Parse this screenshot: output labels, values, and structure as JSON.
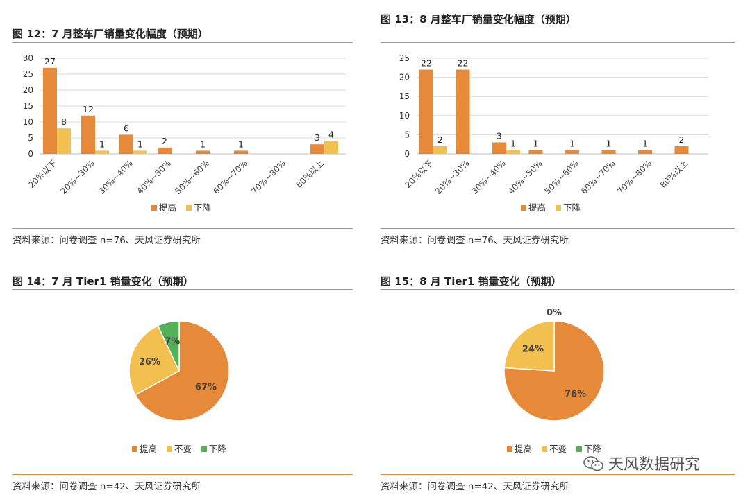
{
  "watermark": {
    "text": "天风数据研究",
    "icon": "wechat-icon"
  },
  "colors": {
    "up": "#e68a3a",
    "down": "#f2c04e",
    "same": "#f2c04e",
    "green": "#55b05a",
    "rule": "#e0883a"
  },
  "figures": [
    {
      "title": "图 12：7 月整车厂销量变化幅度（预期）",
      "source": "资料来源：问卷调查 n=76、天风证券研究所"
    },
    {
      "title": "图 13：8 月整车厂销量变化幅度（预期）",
      "source": "资料来源：问卷调查 n=76、天风证券研究所"
    },
    {
      "title": "图 14：7 月 Tier1 销量变化（预期）",
      "source": "资料来源：问卷调查 n=42、天风证券研究所"
    },
    {
      "title": "图 15：8 月 Tier1 销量变化（预期）",
      "source": "资料来源：问卷调查 n=42、天风证券研究所"
    }
  ],
  "chart_data": [
    {
      "type": "bar",
      "categories": [
        "20%以下",
        "20%~30%",
        "30%~40%",
        "40%~50%",
        "50%~60%",
        "60%~70%",
        "70%~80%",
        "80%以上"
      ],
      "series": [
        {
          "name": "提高",
          "values": [
            27,
            12,
            6,
            2,
            1,
            1,
            0,
            3
          ],
          "labels": [
            "27",
            "12",
            "6",
            "2",
            "1",
            "1",
            "",
            "3"
          ]
        },
        {
          "name": "下降",
          "values": [
            8,
            1,
            1,
            0,
            0,
            0,
            0,
            4
          ],
          "labels": [
            "8",
            "1",
            "1",
            "",
            "",
            "",
            "",
            "4"
          ]
        }
      ],
      "yticks": [
        0,
        5,
        10,
        15,
        20,
        25,
        30
      ],
      "ylim": [
        0,
        30
      ],
      "legend": "bottom",
      "grid": true
    },
    {
      "type": "bar",
      "categories": [
        "20%以下",
        "20%~30%",
        "30%~40%",
        "40%~50%",
        "50%~60%",
        "60%~70%",
        "70%~80%",
        "80%以上"
      ],
      "series": [
        {
          "name": "提高",
          "values": [
            22,
            22,
            3,
            1,
            1,
            1,
            1,
            2
          ],
          "labels": [
            "22",
            "22",
            "3",
            "1",
            "1",
            "1",
            "1",
            "2"
          ]
        },
        {
          "name": "下降",
          "values": [
            2,
            0,
            1,
            0,
            0,
            0,
            0,
            0
          ],
          "labels": [
            "2",
            "",
            "1",
            "",
            "",
            "",
            "",
            ""
          ]
        }
      ],
      "yticks": [
        0,
        5,
        10,
        15,
        20,
        25
      ],
      "ylim": [
        0,
        25
      ],
      "legend": "bottom",
      "grid": true
    },
    {
      "type": "pie",
      "slices": [
        {
          "name": "提高",
          "value": 67,
          "label": "67%"
        },
        {
          "name": "不变",
          "value": 26,
          "label": "26%"
        },
        {
          "name": "下降",
          "value": 7,
          "label": "7%"
        }
      ],
      "legend": "bottom"
    },
    {
      "type": "pie",
      "slices": [
        {
          "name": "提高",
          "value": 76,
          "label": "76%"
        },
        {
          "name": "不变",
          "value": 24,
          "label": "24%"
        },
        {
          "name": "下降",
          "value": 0,
          "label": "0%"
        }
      ],
      "legend": "bottom"
    }
  ]
}
